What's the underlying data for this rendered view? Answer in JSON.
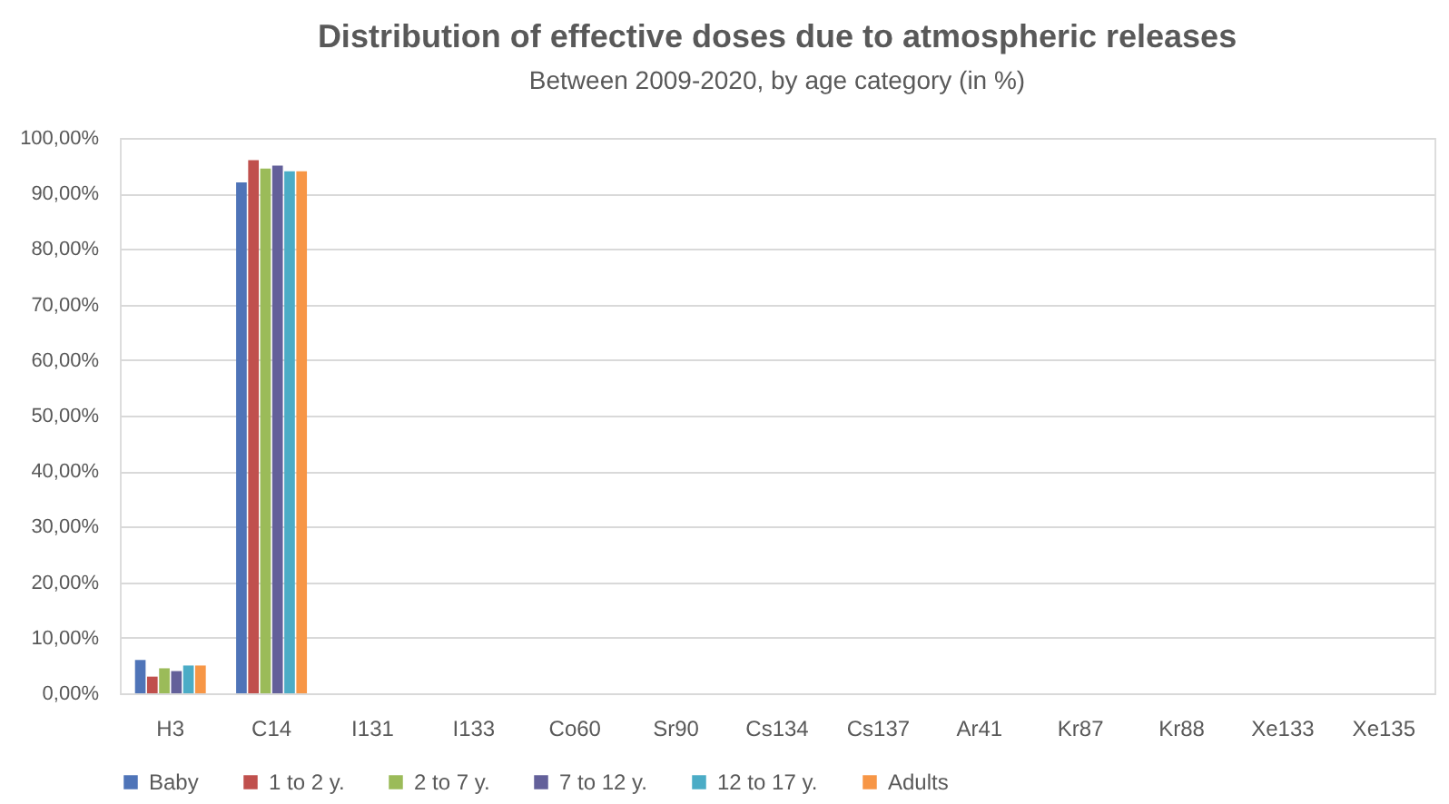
{
  "chart_data": {
    "type": "bar",
    "title": "Distribution of effective doses due to atmospheric releases",
    "subtitle": "Between 2009-2020, by age category (in %)",
    "categories": [
      "H3",
      "C14",
      "I131",
      "I133",
      "Co60",
      "Sr90",
      "Cs134",
      "Cs137",
      "Ar41",
      "Kr87",
      "Kr88",
      "Xe133",
      "Xe135"
    ],
    "series": [
      {
        "name": "Baby",
        "color": "#4f74b8",
        "values": [
          6,
          92,
          null,
          null,
          null,
          null,
          null,
          null,
          null,
          null,
          null,
          null,
          null
        ]
      },
      {
        "name": "1 to 2 y.",
        "color": "#c0504d",
        "values": [
          3,
          96,
          null,
          null,
          null,
          null,
          null,
          null,
          null,
          null,
          null,
          null,
          null
        ]
      },
      {
        "name": "2 to 7 y.",
        "color": "#9bbb59",
        "values": [
          4.5,
          94.5,
          null,
          null,
          null,
          null,
          null,
          null,
          null,
          null,
          null,
          null,
          null
        ]
      },
      {
        "name": "7 to 12 y.",
        "color": "#63609a",
        "values": [
          4,
          95,
          null,
          null,
          null,
          null,
          null,
          null,
          null,
          null,
          null,
          null,
          null
        ]
      },
      {
        "name": "12 to 17 y.",
        "color": "#4bacc6",
        "values": [
          5,
          94,
          null,
          null,
          null,
          null,
          null,
          null,
          null,
          null,
          null,
          null,
          null
        ]
      },
      {
        "name": "Adults",
        "color": "#f79646",
        "values": [
          5,
          94,
          null,
          null,
          null,
          null,
          null,
          null,
          null,
          null,
          null,
          null,
          null
        ]
      }
    ],
    "ylim": [
      0,
      100
    ],
    "yticks": [
      {
        "value": 0,
        "label": "0,00%"
      },
      {
        "value": 10,
        "label": "10,00%"
      },
      {
        "value": 20,
        "label": "20,00%"
      },
      {
        "value": 30,
        "label": "30,00%"
      },
      {
        "value": 40,
        "label": "40,00%"
      },
      {
        "value": 50,
        "label": "50,00%"
      },
      {
        "value": 60,
        "label": "60,00%"
      },
      {
        "value": 70,
        "label": "70,00%"
      },
      {
        "value": 80,
        "label": "80,00%"
      },
      {
        "value": 90,
        "label": "90,00%"
      },
      {
        "value": 100,
        "label": "100,00%"
      }
    ],
    "grid": "y",
    "legend": "bottom"
  }
}
